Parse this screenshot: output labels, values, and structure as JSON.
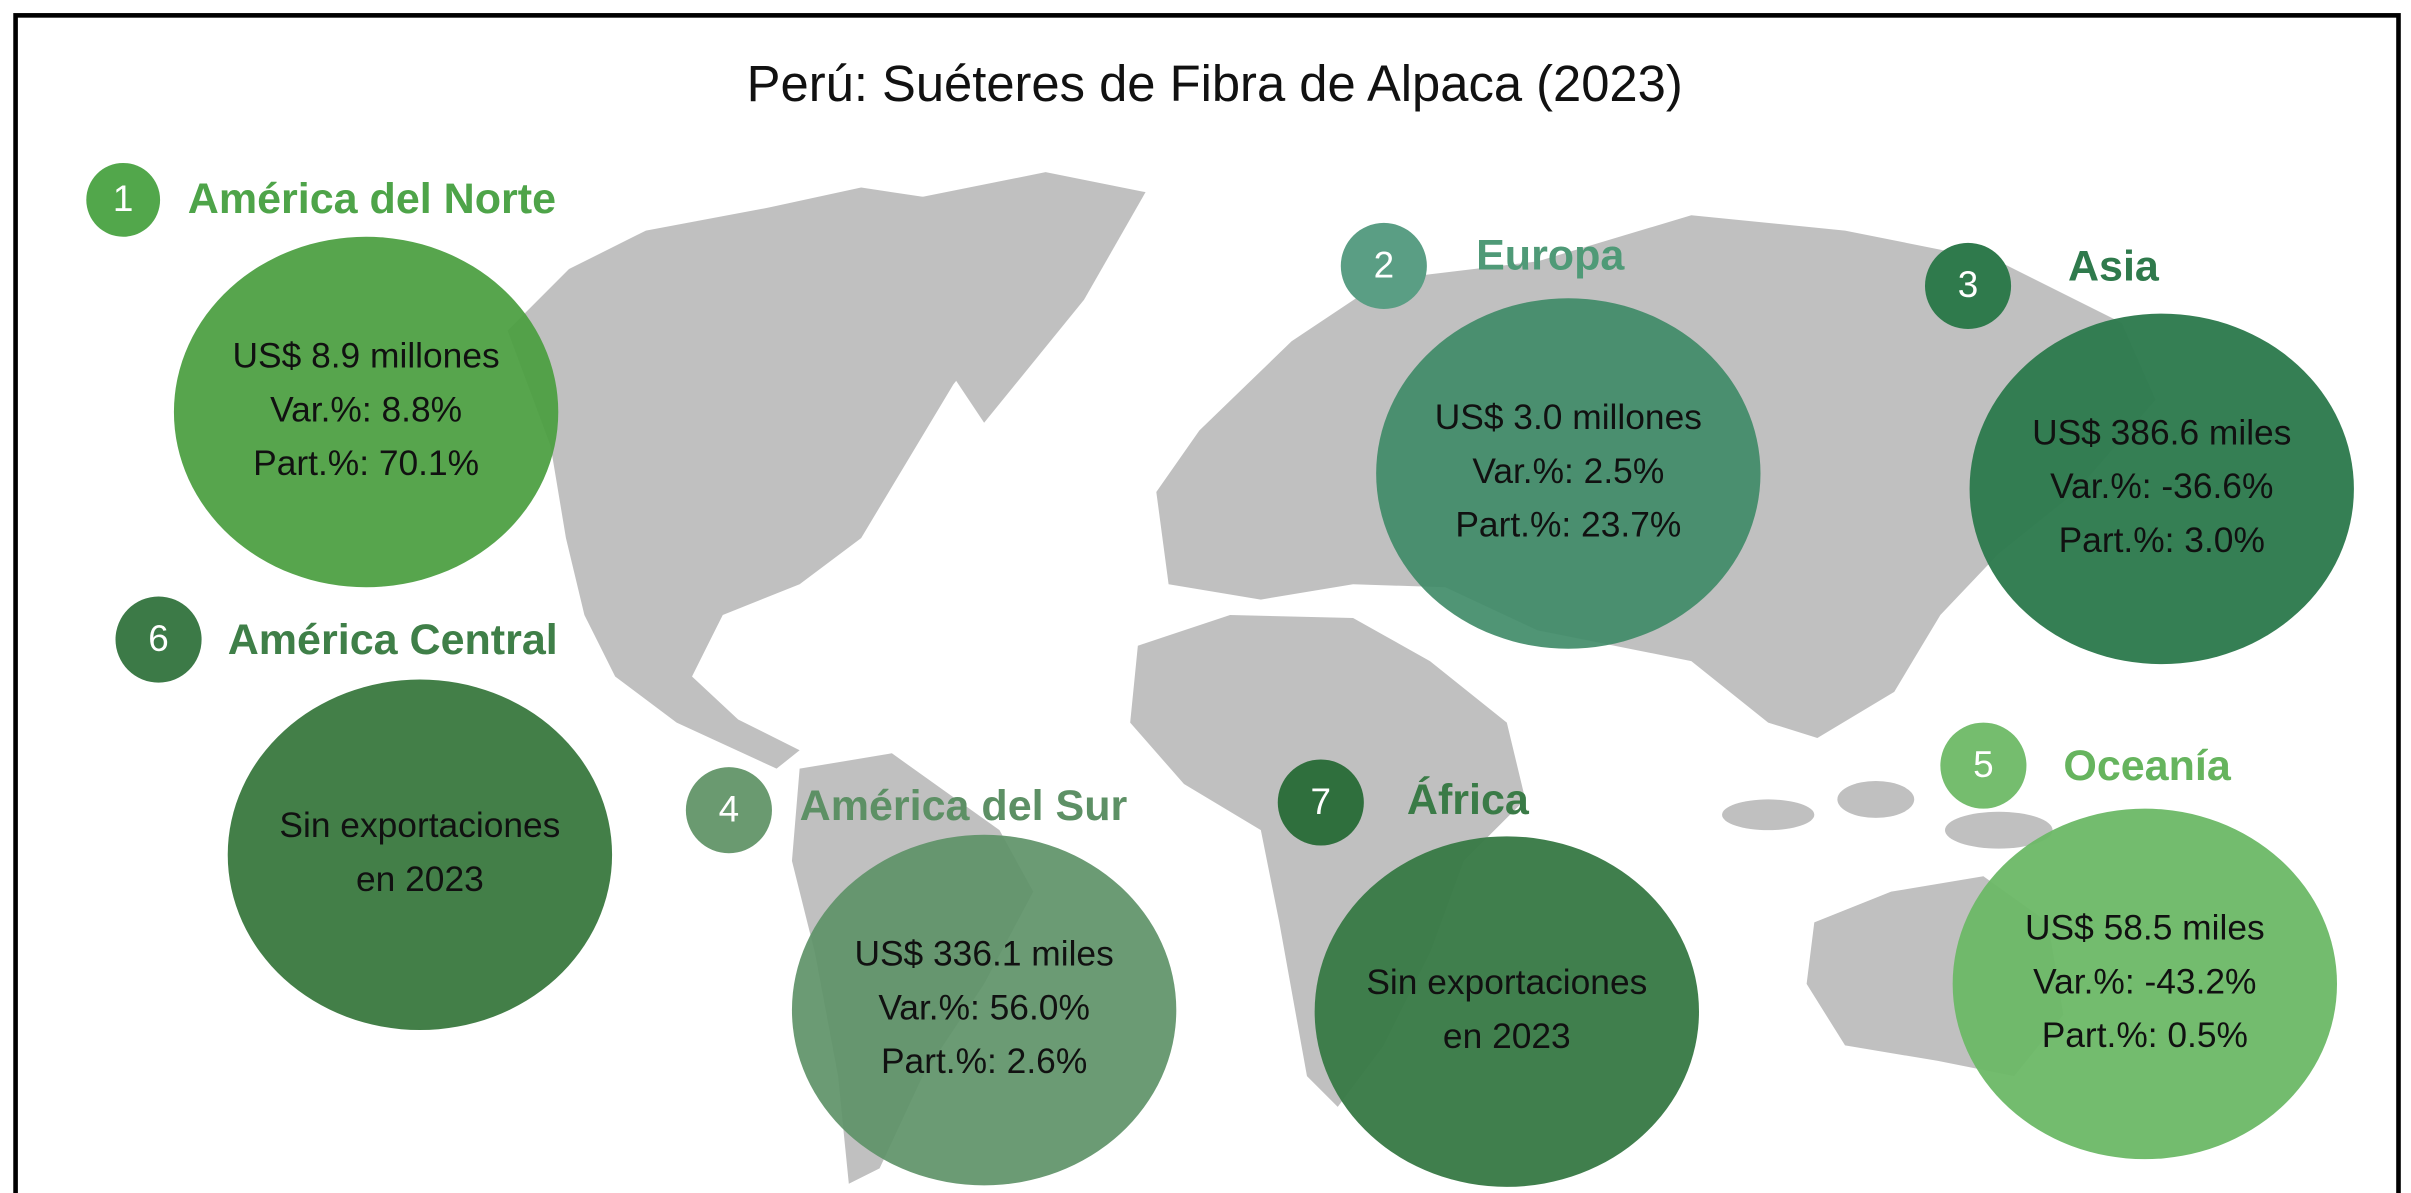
{
  "title": "Perú: Suéteres de Fibra de Alpaca (2023)",
  "regions": [
    {
      "number": 1,
      "name": "América del Norte",
      "lines": [
        "US$ 8.9 millones",
        "Var.%: 8.8%",
        "Part.%: 70.1%"
      ]
    },
    {
      "number": 2,
      "name": "Europa",
      "lines": [
        "US$ 3.0 millones",
        "Var.%: 2.5%",
        "Part.%: 23.7%"
      ]
    },
    {
      "number": 3,
      "name": "Asia",
      "lines": [
        "US$ 386.6 miles",
        "Var.%: -36.6%",
        "Part.%: 3.0%"
      ]
    },
    {
      "number": 4,
      "name": "América del Sur",
      "lines": [
        "US$ 336.1 miles",
        "Var.%: 56.0%",
        "Part.%: 2.6%"
      ]
    },
    {
      "number": 5,
      "name": "Oceanía",
      "lines": [
        "US$ 58.5 miles",
        "Var.%: -43.2%",
        "Part.%: 0.5%"
      ]
    },
    {
      "number": 6,
      "name": "América Central",
      "lines": [
        "Sin exportaciones",
        "en 2023"
      ]
    },
    {
      "number": 7,
      "name": "África",
      "lines": [
        "Sin exportaciones",
        "en 2023"
      ]
    }
  ]
}
